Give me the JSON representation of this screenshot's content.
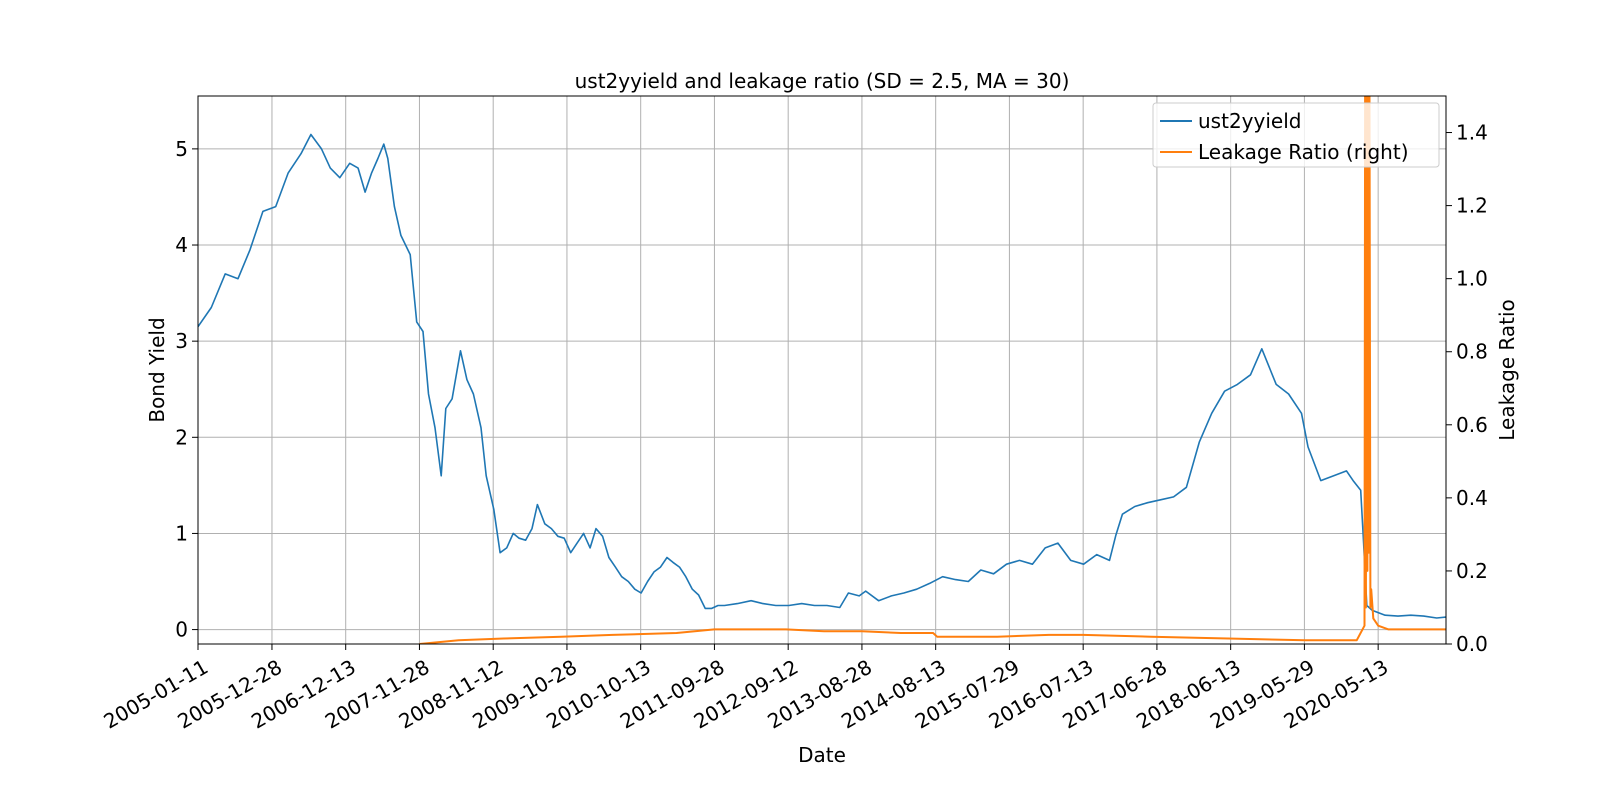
{
  "chart_data": {
    "type": "line",
    "title": "ust2yyield and leakage ratio (SD = 2.5, MA = 30)",
    "xlabel": "Date",
    "ylabel": "Bond Yield",
    "y2label": "Leakage Ratio",
    "xlim": [
      "2005-01-11",
      "2021-03-31"
    ],
    "ylim": [
      -0.15,
      5.55
    ],
    "y2lim": [
      0,
      1.5
    ],
    "x_ticks": [
      "2005-01-11",
      "2005-12-28",
      "2006-12-13",
      "2007-11-28",
      "2008-11-12",
      "2009-10-28",
      "2010-10-13",
      "2011-09-28",
      "2012-09-12",
      "2013-08-28",
      "2014-08-13",
      "2015-07-29",
      "2016-07-13",
      "2017-06-28",
      "2018-06-13",
      "2019-05-29",
      "2020-05-13"
    ],
    "y_ticks": [
      0,
      1,
      2,
      3,
      4,
      5
    ],
    "y2_ticks": [
      0.0,
      0.2,
      0.4,
      0.6,
      0.8,
      1.0,
      1.2,
      1.4
    ],
    "y2_tick_labels": [
      "0.0",
      "0.2",
      "0.4",
      "0.6",
      "0.8",
      "1.0",
      "1.2",
      "1.4"
    ],
    "grid": true,
    "legend_position": "top-right",
    "series": [
      {
        "name": "ust2yyield",
        "axis": "left",
        "color": "#1f77b4",
        "x": [
          "2005-01-11",
          "2005-03-15",
          "2005-05-20",
          "2005-07-20",
          "2005-09-15",
          "2005-11-15",
          "2006-01-15",
          "2006-03-15",
          "2006-05-15",
          "2006-07-01",
          "2006-08-20",
          "2006-10-01",
          "2006-11-15",
          "2007-01-01",
          "2007-02-10",
          "2007-03-15",
          "2007-04-15",
          "2007-05-15",
          "2007-06-12",
          "2007-07-01",
          "2007-08-01",
          "2007-09-01",
          "2007-10-15",
          "2007-11-15",
          "2007-12-15",
          "2008-01-10",
          "2008-02-10",
          "2008-03-10",
          "2008-04-01",
          "2008-05-01",
          "2008-06-10",
          "2008-07-10",
          "2008-08-10",
          "2008-09-15",
          "2008-10-10",
          "2008-11-15",
          "2008-12-15",
          "2009-01-15",
          "2009-02-15",
          "2009-03-15",
          "2009-04-15",
          "2009-05-15",
          "2009-06-10",
          "2009-07-15",
          "2009-08-15",
          "2009-09-15",
          "2009-10-15",
          "2009-11-15",
          "2009-12-15",
          "2010-01-15",
          "2010-02-15",
          "2010-03-15",
          "2010-04-15",
          "2010-05-15",
          "2010-06-15",
          "2010-07-15",
          "2010-08-15",
          "2010-09-15",
          "2010-10-15",
          "2010-11-15",
          "2010-12-15",
          "2011-01-15",
          "2011-02-15",
          "2011-03-15",
          "2011-04-15",
          "2011-05-15",
          "2011-06-15",
          "2011-07-15",
          "2011-08-15",
          "2011-09-15",
          "2011-10-15",
          "2011-11-15",
          "2012-01-15",
          "2012-03-20",
          "2012-05-15",
          "2012-07-15",
          "2012-09-15",
          "2012-11-15",
          "2013-01-15",
          "2013-03-15",
          "2013-05-15",
          "2013-06-25",
          "2013-08-15",
          "2013-09-15",
          "2013-11-15",
          "2014-01-15",
          "2014-03-15",
          "2014-05-15",
          "2014-07-15",
          "2014-09-15",
          "2014-11-15",
          "2015-01-15",
          "2015-03-15",
          "2015-05-15",
          "2015-07-15",
          "2015-09-15",
          "2015-11-15",
          "2016-01-15",
          "2016-03-15",
          "2016-05-15",
          "2016-07-15",
          "2016-09-15",
          "2016-11-15",
          "2016-12-15",
          "2017-01-15",
          "2017-03-15",
          "2017-05-15",
          "2017-07-15",
          "2017-09-15",
          "2017-11-15",
          "2018-01-15",
          "2018-03-15",
          "2018-05-15",
          "2018-07-15",
          "2018-09-15",
          "2018-11-08",
          "2019-01-15",
          "2019-03-15",
          "2019-05-15",
          "2019-06-15",
          "2019-08-15",
          "2019-10-15",
          "2019-12-15",
          "2020-01-15",
          "2020-02-20",
          "2020-03-05",
          "2020-03-20",
          "2020-04-15",
          "2020-06-15",
          "2020-08-15",
          "2020-10-15",
          "2020-12-15",
          "2021-02-15",
          "2021-03-31"
        ],
        "values": [
          3.15,
          3.35,
          3.7,
          3.65,
          3.95,
          4.35,
          4.4,
          4.75,
          4.95,
          5.15,
          5.0,
          4.8,
          4.7,
          4.85,
          4.8,
          4.55,
          4.75,
          4.9,
          5.05,
          4.9,
          4.4,
          4.1,
          3.9,
          3.2,
          3.1,
          2.45,
          2.1,
          1.6,
          2.3,
          2.4,
          2.9,
          2.6,
          2.45,
          2.1,
          1.6,
          1.25,
          0.8,
          0.85,
          1.0,
          0.95,
          0.93,
          1.05,
          1.3,
          1.1,
          1.05,
          0.97,
          0.95,
          0.8,
          0.9,
          1.0,
          0.85,
          1.05,
          0.97,
          0.75,
          0.65,
          0.55,
          0.5,
          0.42,
          0.38,
          0.5,
          0.6,
          0.65,
          0.75,
          0.7,
          0.65,
          0.55,
          0.42,
          0.36,
          0.22,
          0.22,
          0.25,
          0.25,
          0.27,
          0.3,
          0.27,
          0.25,
          0.25,
          0.27,
          0.25,
          0.25,
          0.23,
          0.38,
          0.35,
          0.4,
          0.3,
          0.35,
          0.38,
          0.42,
          0.48,
          0.55,
          0.52,
          0.5,
          0.62,
          0.58,
          0.68,
          0.72,
          0.68,
          0.85,
          0.9,
          0.72,
          0.68,
          0.78,
          0.72,
          0.98,
          1.2,
          1.28,
          1.32,
          1.35,
          1.38,
          1.48,
          1.95,
          2.25,
          2.48,
          2.55,
          2.65,
          2.92,
          2.55,
          2.45,
          2.25,
          1.9,
          1.55,
          1.6,
          1.65,
          1.55,
          1.45,
          0.9,
          0.25,
          0.2,
          0.15,
          0.14,
          0.15,
          0.14,
          0.12,
          0.13
        ]
      },
      {
        "name": "Leakage Ratio (right)",
        "axis": "right",
        "color": "#ff7f0e",
        "x": [
          "2007-11-28",
          "2008-06-01",
          "2009-01-01",
          "2009-10-01",
          "2010-06-01",
          "2011-04-01",
          "2011-09-28",
          "2012-03-01",
          "2012-09-01",
          "2013-03-01",
          "2013-08-28",
          "2014-03-01",
          "2014-08-01",
          "2014-08-20",
          "2015-06-01",
          "2016-02-01",
          "2016-07-13",
          "2017-06-01",
          "2018-06-01",
          "2019-06-01",
          "2020-02-01",
          "2020-03-09",
          "2020-03-12",
          "2020-03-16",
          "2020-03-19",
          "2020-03-23",
          "2020-03-26",
          "2020-03-30",
          "2020-04-02",
          "2020-04-06",
          "2020-04-10",
          "2020-04-20",
          "2020-05-13",
          "2020-07-01",
          "2021-03-31"
        ],
        "values": [
          0.0,
          0.01,
          0.015,
          0.02,
          0.025,
          0.03,
          0.04,
          0.04,
          0.04,
          0.035,
          0.035,
          0.03,
          0.03,
          0.02,
          0.02,
          0.025,
          0.025,
          0.02,
          0.015,
          0.01,
          0.01,
          0.05,
          1.5,
          0.1,
          1.5,
          0.2,
          1.5,
          0.25,
          1.5,
          0.1,
          0.15,
          0.07,
          0.05,
          0.04,
          0.04
        ]
      }
    ]
  }
}
